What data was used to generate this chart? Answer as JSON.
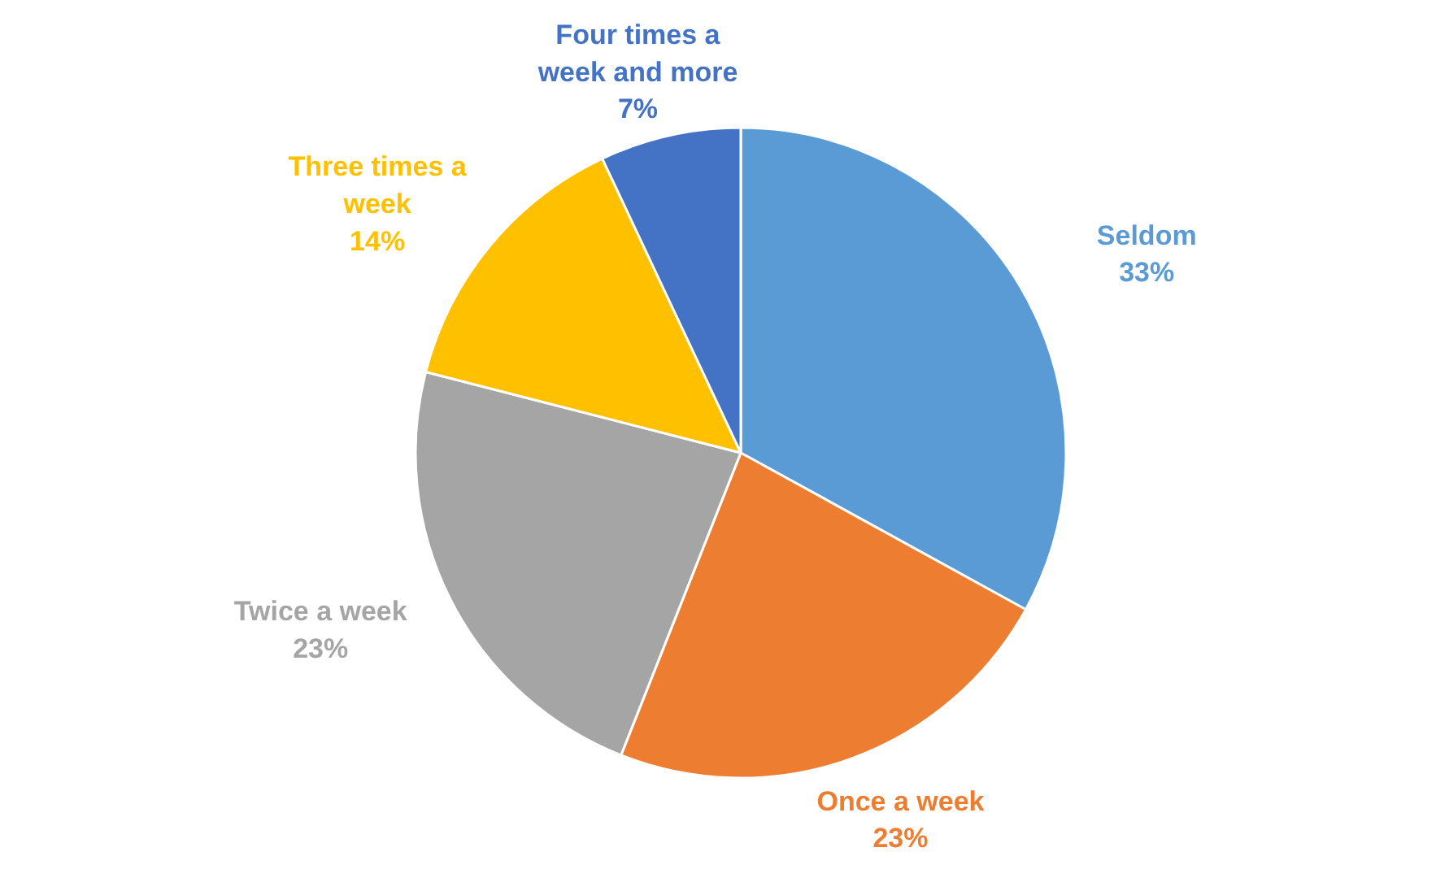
{
  "chart_data": {
    "type": "pie",
    "categories": [
      "Seldom",
      "Once a week",
      "Twice a week",
      "Three times a week",
      "Four times a week and more"
    ],
    "values": [
      33,
      23,
      23,
      14,
      7
    ],
    "colors": [
      "#5b9bd5",
      "#ed7d31",
      "#a5a5a5",
      "#ffc000",
      "#4472c4"
    ],
    "value_labels": [
      "33%",
      "23%",
      "23%",
      "14%",
      "7%"
    ]
  }
}
